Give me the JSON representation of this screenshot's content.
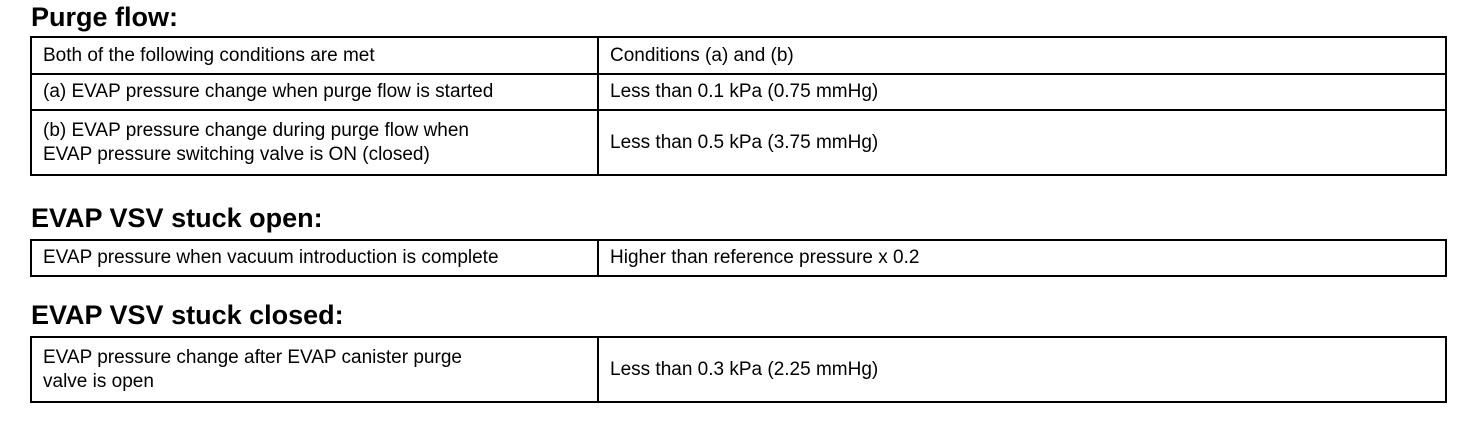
{
  "sections": [
    {
      "title": "Purge flow:",
      "table": {
        "rows": [
          [
            "Both of the following conditions are met",
            "Conditions (a) and (b)"
          ],
          [
            "(a) EVAP pressure change when purge flow is started",
            "Less than 0.1 kPa (0.75 mmHg)"
          ],
          [
            "(b) EVAP pressure change during purge flow when\nEVAP pressure switching valve is ON (closed)",
            "Less than 0.5 kPa (3.75 mmHg)"
          ]
        ]
      }
    },
    {
      "title": "EVAP VSV stuck open:",
      "table": {
        "rows": [
          [
            "EVAP pressure when vacuum introduction is complete",
            "Higher than reference pressure x 0.2"
          ]
        ]
      }
    },
    {
      "title": "EVAP VSV stuck closed:",
      "table": {
        "rows": [
          [
            "EVAP pressure change after EVAP canister purge\nvalve is open",
            "Less than 0.3 kPa (2.25 mmHg)"
          ]
        ]
      }
    }
  ]
}
